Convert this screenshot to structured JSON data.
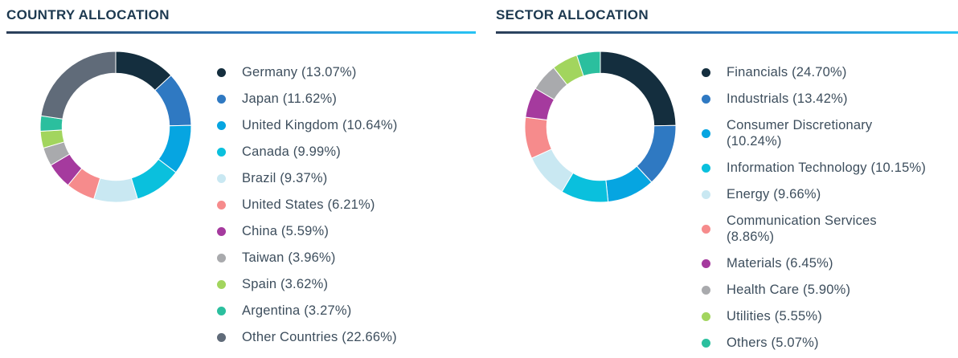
{
  "accent": {
    "title_color": "#1d3950",
    "legend_text_color": "#3d4e5d",
    "rule_gradient": [
      "#2b3e57",
      "#27c3f4"
    ]
  },
  "chart_data": [
    {
      "type": "pie",
      "subtype": "donut",
      "title": "COUNTRY ALLOCATION",
      "direction": "clockwise",
      "start_angle_deg": 0,
      "inner_radius_ratio": 0.71,
      "legend_position": "right",
      "labels": [
        "Germany",
        "Japan",
        "United Kingdom",
        "Canada",
        "Brazil",
        "United States",
        "China",
        "Taiwan",
        "Spain",
        "Argentina",
        "Other Countries"
      ],
      "values": [
        13.07,
        11.62,
        10.64,
        9.99,
        9.37,
        6.21,
        5.59,
        3.96,
        3.62,
        3.27,
        22.66
      ],
      "colors": [
        "#142e3e",
        "#2f79c2",
        "#06a5e1",
        "#0ac0dd",
        "#c9e8f2",
        "#f68b8c",
        "#a53a9e",
        "#a9aaad",
        "#a2d55e",
        "#2bbf9e",
        "#606b79"
      ],
      "legend": [
        {
          "text": "Germany (13.07%)"
        },
        {
          "text": "Japan (11.62%)"
        },
        {
          "text": "United Kingdom (10.64%)"
        },
        {
          "text": "Canada (9.99%)"
        },
        {
          "text": "Brazil (9.37%)"
        },
        {
          "text": "United States (6.21%)"
        },
        {
          "text": "China (5.59%)"
        },
        {
          "text": "Taiwan (3.96%)"
        },
        {
          "text": "Spain (3.62%)"
        },
        {
          "text": "Argentina (3.27%)"
        },
        {
          "text": "Other Countries (22.66%)"
        }
      ]
    },
    {
      "type": "pie",
      "subtype": "donut",
      "title": "SECTOR ALLOCATION",
      "direction": "clockwise",
      "start_angle_deg": 0,
      "inner_radius_ratio": 0.71,
      "legend_position": "right",
      "labels": [
        "Financials",
        "Industrials",
        "Consumer Discretionary",
        "Information Technology",
        "Energy",
        "Communication Services",
        "Materials",
        "Health Care",
        "Utilities",
        "Others"
      ],
      "values": [
        24.7,
        13.42,
        10.24,
        10.15,
        9.66,
        8.86,
        6.45,
        5.9,
        5.55,
        5.07
      ],
      "colors": [
        "#142e3e",
        "#2f79c2",
        "#06a5e1",
        "#0ac0dd",
        "#c9e8f2",
        "#f68b8c",
        "#a53a9e",
        "#a9aaad",
        "#a2d55e",
        "#2bbf9e"
      ],
      "legend": [
        {
          "text": "Financials (24.70%)"
        },
        {
          "text": "Industrials (13.42%)"
        },
        {
          "text": "Consumer Discretionary\n(10.24%)"
        },
        {
          "text": "Information Technology (10.15%)"
        },
        {
          "text": "Energy (9.66%)"
        },
        {
          "text": "Communication Services\n(8.86%)"
        },
        {
          "text": "Materials (6.45%)"
        },
        {
          "text": "Health Care (5.90%)"
        },
        {
          "text": "Utilities (5.55%)"
        },
        {
          "text": "Others (5.07%)"
        }
      ]
    }
  ]
}
